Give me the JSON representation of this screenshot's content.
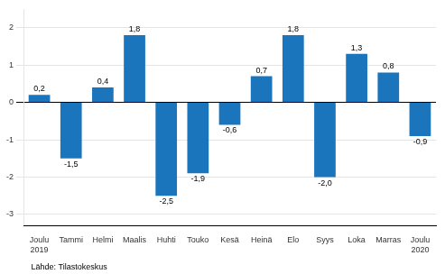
{
  "chart_data": {
    "type": "bar",
    "categories": [
      "Joulu\n2019",
      "Tammi",
      "Helmi",
      "Maalis",
      "Huhti",
      "Touko",
      "Kesä",
      "Heinä",
      "Elo",
      "Syys",
      "Loka",
      "Marras",
      "Joulu\n2020"
    ],
    "values": [
      0.2,
      -1.5,
      0.4,
      1.8,
      -2.5,
      -1.9,
      -0.6,
      0.7,
      1.8,
      -2.0,
      1.3,
      0.8,
      -0.9
    ],
    "value_labels": [
      "0,2",
      "-1,5",
      "0,4",
      "1,8",
      "-2,5",
      "-1,9",
      "-0,6",
      "0,7",
      "1,8",
      "-2,0",
      "1,3",
      "0,8",
      "-0,9"
    ],
    "data_labels": true,
    "color": "#1b75bc",
    "ylim": [
      -3.3,
      2.5
    ],
    "yticks": [
      -3,
      -2,
      -1,
      0,
      1,
      2
    ],
    "grid": true,
    "annotations": [
      "Lähde: Tilastokeskus"
    ]
  }
}
